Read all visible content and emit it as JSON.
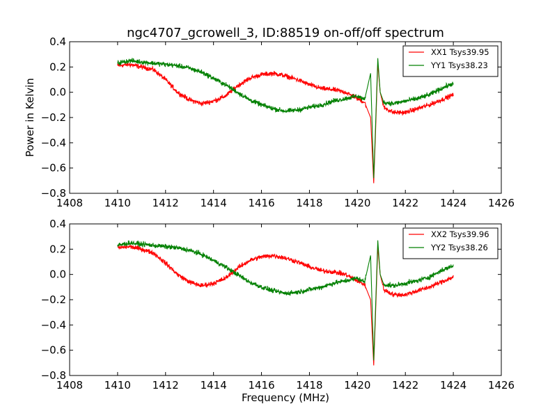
{
  "chart_data": {
    "title": "ngc4707_gcrowell_3, ID:88519 on-off/off spectrum",
    "ylabel": "Power in Kelvin",
    "xlabel": "Frequency (MHz)",
    "panels": [
      {
        "type": "line",
        "xlim": [
          1408,
          1426
        ],
        "ylim": [
          -0.8,
          0.4
        ],
        "xticks": [
          "1408",
          "1410",
          "1412",
          "1414",
          "1416",
          "1418",
          "1420",
          "1422",
          "1424",
          "1426"
        ],
        "yticks": [
          "0.4",
          "0.2",
          "0.0",
          "−0.2",
          "−0.4",
          "−0.6",
          "−0.8"
        ],
        "legend_position": "top-right",
        "series": [
          {
            "name": "XX1 Tsys39.95",
            "color": "#ff0000",
            "x": [
              1410.0,
              1410.5,
              1411.0,
              1411.5,
              1412.0,
              1412.5,
              1413.0,
              1413.5,
              1414.0,
              1414.5,
              1415.0,
              1415.5,
              1416.0,
              1416.5,
              1417.0,
              1417.5,
              1418.0,
              1418.5,
              1419.0,
              1419.5,
              1420.0,
              1420.3,
              1420.55,
              1420.68,
              1420.75,
              1420.85,
              1420.95,
              1421.1,
              1421.5,
              1422.0,
              1422.5,
              1423.0,
              1423.5,
              1424.0
            ],
            "y": [
              0.21,
              0.22,
              0.2,
              0.18,
              0.1,
              0.0,
              -0.06,
              -0.09,
              -0.07,
              -0.03,
              0.05,
              0.11,
              0.14,
              0.15,
              0.13,
              0.1,
              0.06,
              0.03,
              0.02,
              0.0,
              -0.05,
              -0.08,
              -0.2,
              -0.72,
              -0.35,
              0.23,
              0.0,
              -0.12,
              -0.16,
              -0.16,
              -0.13,
              -0.1,
              -0.06,
              -0.02
            ]
          },
          {
            "name": "YY1 Tsys38.23",
            "color": "#008000",
            "x": [
              1410.0,
              1410.5,
              1411.0,
              1411.5,
              1412.0,
              1412.5,
              1413.0,
              1413.5,
              1414.0,
              1414.5,
              1415.0,
              1415.5,
              1416.0,
              1416.5,
              1417.0,
              1417.5,
              1418.0,
              1418.5,
              1419.0,
              1419.5,
              1420.0,
              1420.3,
              1420.55,
              1420.68,
              1420.75,
              1420.85,
              1420.95,
              1421.1,
              1421.5,
              1422.0,
              1422.5,
              1423.0,
              1423.5,
              1424.0
            ],
            "y": [
              0.23,
              0.25,
              0.24,
              0.23,
              0.22,
              0.21,
              0.19,
              0.16,
              0.11,
              0.06,
              0.0,
              -0.06,
              -0.1,
              -0.13,
              -0.15,
              -0.14,
              -0.12,
              -0.1,
              -0.07,
              -0.05,
              -0.03,
              -0.06,
              0.15,
              -0.68,
              -0.3,
              0.27,
              0.0,
              -0.08,
              -0.09,
              -0.07,
              -0.05,
              -0.02,
              0.03,
              0.07
            ]
          }
        ]
      },
      {
        "type": "line",
        "xlim": [
          1408,
          1426
        ],
        "ylim": [
          -0.8,
          0.4
        ],
        "xticks": [
          "1408",
          "1410",
          "1412",
          "1414",
          "1416",
          "1418",
          "1420",
          "1422",
          "1424",
          "1426"
        ],
        "yticks": [
          "0.4",
          "0.2",
          "0.0",
          "−0.2",
          "−0.4",
          "−0.6",
          "−0.8"
        ],
        "legend_position": "top-right",
        "series": [
          {
            "name": "XX2 Tsys39.96",
            "color": "#ff0000",
            "x": [
              1410.0,
              1410.5,
              1411.0,
              1411.5,
              1412.0,
              1412.5,
              1413.0,
              1413.5,
              1414.0,
              1414.5,
              1415.0,
              1415.5,
              1416.0,
              1416.5,
              1417.0,
              1417.5,
              1418.0,
              1418.5,
              1419.0,
              1419.5,
              1420.0,
              1420.3,
              1420.55,
              1420.68,
              1420.75,
              1420.85,
              1420.95,
              1421.1,
              1421.5,
              1422.0,
              1422.5,
              1423.0,
              1423.5,
              1424.0
            ],
            "y": [
              0.21,
              0.22,
              0.2,
              0.17,
              0.09,
              0.0,
              -0.06,
              -0.09,
              -0.07,
              -0.03,
              0.05,
              0.11,
              0.14,
              0.15,
              0.13,
              0.1,
              0.06,
              0.03,
              0.02,
              0.0,
              -0.05,
              -0.08,
              -0.2,
              -0.72,
              -0.35,
              0.22,
              0.0,
              -0.12,
              -0.16,
              -0.16,
              -0.13,
              -0.1,
              -0.06,
              -0.02
            ]
          },
          {
            "name": "YY2 Tsys38.26",
            "color": "#008000",
            "x": [
              1410.0,
              1410.5,
              1411.0,
              1411.5,
              1412.0,
              1412.5,
              1413.0,
              1413.5,
              1414.0,
              1414.5,
              1415.0,
              1415.5,
              1416.0,
              1416.5,
              1417.0,
              1417.5,
              1418.0,
              1418.5,
              1419.0,
              1419.5,
              1420.0,
              1420.3,
              1420.55,
              1420.68,
              1420.75,
              1420.85,
              1420.95,
              1421.1,
              1421.5,
              1422.0,
              1422.5,
              1423.0,
              1423.5,
              1424.0
            ],
            "y": [
              0.23,
              0.25,
              0.24,
              0.23,
              0.22,
              0.21,
              0.19,
              0.16,
              0.11,
              0.06,
              0.0,
              -0.06,
              -0.1,
              -0.13,
              -0.15,
              -0.14,
              -0.12,
              -0.1,
              -0.07,
              -0.05,
              -0.03,
              -0.06,
              0.15,
              -0.68,
              -0.3,
              0.27,
              0.0,
              -0.08,
              -0.09,
              -0.07,
              -0.05,
              -0.02,
              0.03,
              0.07
            ]
          }
        ]
      }
    ]
  }
}
